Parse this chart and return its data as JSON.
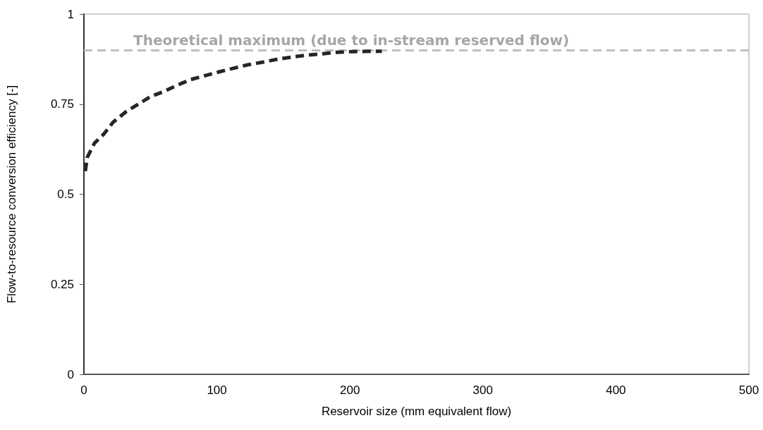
{
  "chart_data": {
    "type": "line",
    "xlabel": "Reservoir size (mm equivalent flow)",
    "ylabel": "Flow-to-resource conversion efficiency [-]",
    "xlim": [
      0,
      500
    ],
    "xticks": [
      0,
      100,
      200,
      300,
      400,
      500
    ],
    "ylim": [
      0,
      1
    ],
    "yticks": [
      0,
      0.25,
      0.5,
      0.75,
      1
    ],
    "grid": false,
    "marker": "none",
    "line_style": "dashed",
    "series": [
      {
        "color": "#262626",
        "x": [
          1,
          2.6,
          8,
          15,
          22,
          32,
          41,
          50,
          60,
          71,
          80,
          92,
          102,
          114,
          123,
          135,
          146,
          157,
          167,
          180,
          190,
          202,
          224
        ],
        "values": [
          0.564,
          0.603,
          0.642,
          0.667,
          0.7,
          0.73,
          0.75,
          0.771,
          0.785,
          0.804,
          0.818,
          0.83,
          0.84,
          0.851,
          0.859,
          0.867,
          0.875,
          0.881,
          0.886,
          0.89,
          0.894,
          0.896,
          0.897
        ]
      }
    ],
    "ref_lines": [
      {
        "axis": "y",
        "value": 0.9,
        "label": "Theoretical maximum (due to in-stream reserved flow)",
        "color": "#bfbfbf",
        "line_style": "dashed"
      }
    ]
  }
}
